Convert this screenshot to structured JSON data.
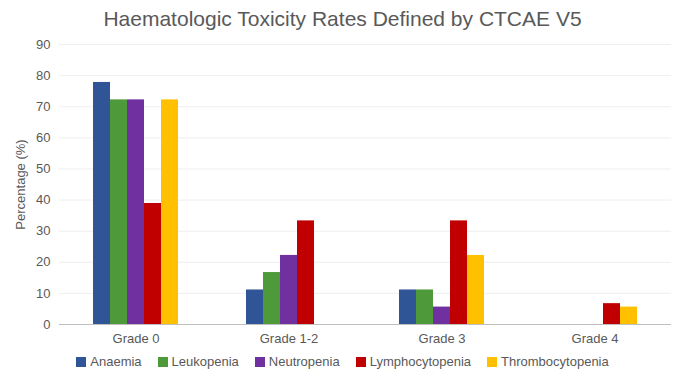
{
  "chart_data": {
    "type": "bar",
    "title": "Haematologic Toxicity Rates Defined by CTCAE V5",
    "y_label": "Percentage (%)",
    "categories": [
      "Grade 0",
      "Grade 1-2",
      "Grade 3",
      "Grade 4"
    ],
    "series": [
      {
        "name": "Anaemia",
        "color": "#2f5597",
        "values": [
          77.8,
          11.1,
          11.1,
          0
        ]
      },
      {
        "name": "Leukopenia",
        "color": "#4e9a3a",
        "values": [
          72.2,
          16.7,
          11.1,
          0
        ]
      },
      {
        "name": "Neutropenia",
        "color": "#7030a0",
        "values": [
          72.2,
          22.2,
          5.6,
          0
        ]
      },
      {
        "name": "Lymphocytopenia",
        "color": "#c00000",
        "values": [
          38.9,
          33.3,
          33.3,
          6.7
        ]
      },
      {
        "name": "Thrombocytopenia",
        "color": "#ffc000",
        "values": [
          72.2,
          0,
          22.2,
          5.6
        ]
      }
    ],
    "ylim": [
      0,
      90
    ],
    "yticks": [
      0,
      10,
      20,
      30,
      40,
      50,
      60,
      70,
      80,
      90
    ],
    "grid": true,
    "legend": "bottom"
  }
}
